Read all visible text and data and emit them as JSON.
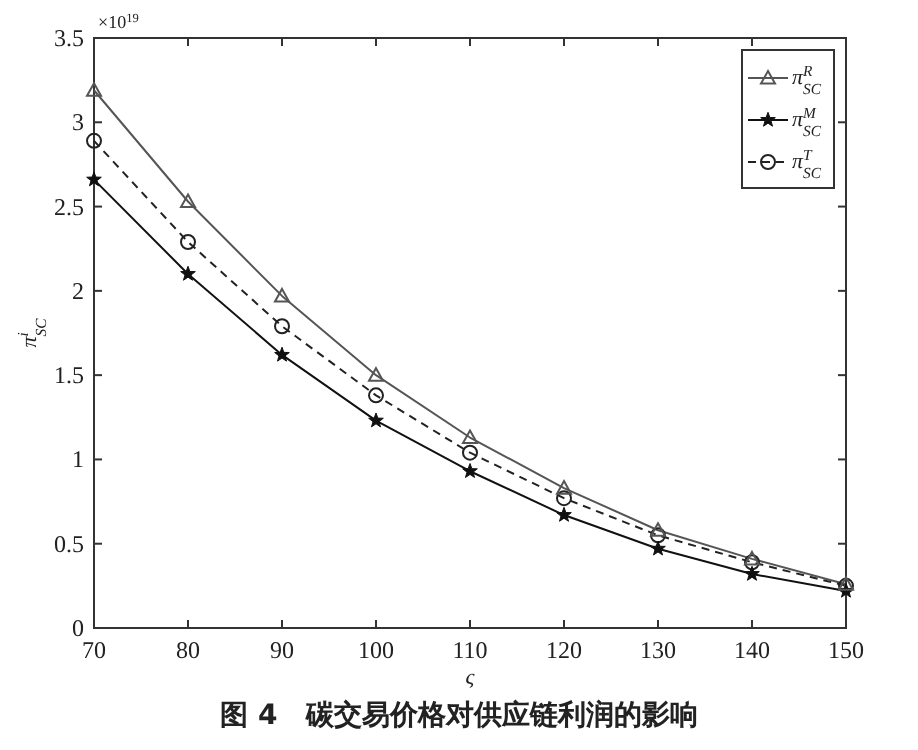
{
  "chart_data": {
    "type": "line",
    "title": "图 4　碳交易价格对供应链利润的影响",
    "xlabel": "ς",
    "ylabel": "π$^{i}$$_{SC}$",
    "annotations": [
      "×10$^{19}$"
    ],
    "x": [
      70,
      80,
      90,
      100,
      110,
      120,
      130,
      140,
      150
    ],
    "xlim": [
      70,
      150
    ],
    "xticks": [
      70,
      80,
      90,
      100,
      110,
      120,
      130,
      140,
      150
    ],
    "ylim": [
      0,
      3.5
    ],
    "yticks": [
      0,
      0.5,
      1,
      1.5,
      2,
      2.5,
      3,
      3.5
    ],
    "grid": false,
    "legend": "top right",
    "series": [
      {
        "name": "π$^{R}$$_{SC}$",
        "color": "#555555",
        "marker": "triangle",
        "line_style": "solid",
        "values": [
          3.19,
          2.53,
          1.97,
          1.5,
          1.13,
          0.83,
          0.58,
          0.41,
          0.26
        ]
      },
      {
        "name": "π$^{M}$$_{SC}$",
        "color": "#111111",
        "marker": "star",
        "line_style": "solid",
        "values": [
          2.66,
          2.1,
          1.62,
          1.23,
          0.93,
          0.67,
          0.47,
          0.32,
          0.22
        ]
      },
      {
        "name": "π$^{T}$$_{SC}$",
        "color": "#222222",
        "marker": "circle",
        "line_style": "dashed",
        "values": [
          2.89,
          2.29,
          1.79,
          1.38,
          1.04,
          0.77,
          0.55,
          0.39,
          0.25
        ]
      }
    ]
  }
}
